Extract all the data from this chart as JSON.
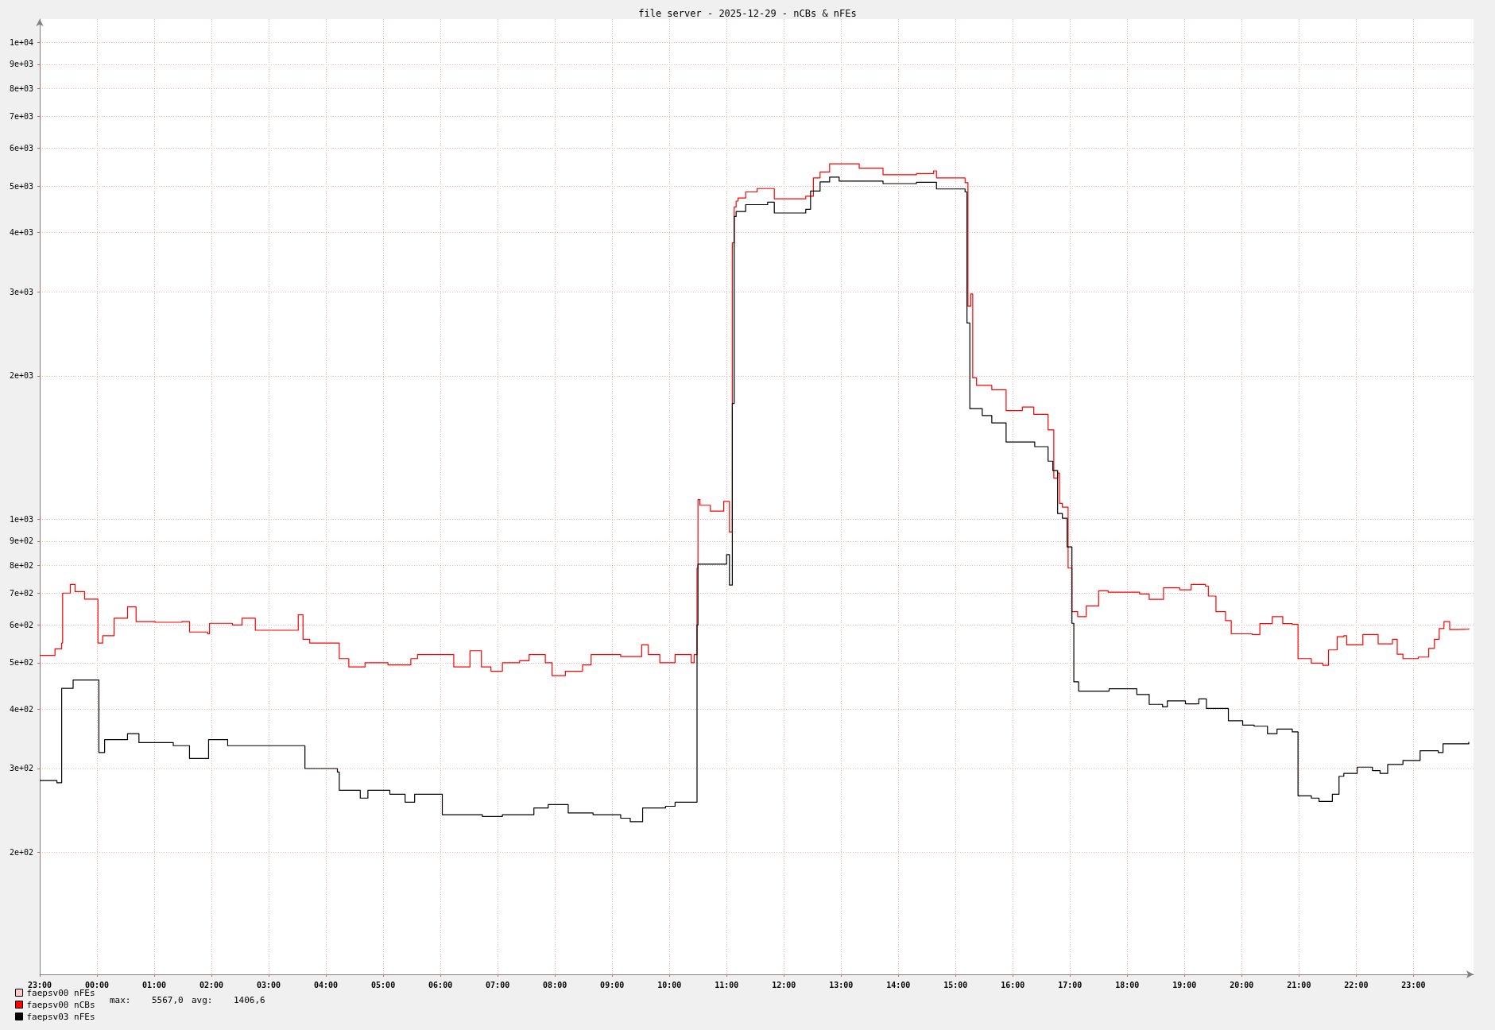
{
  "chart_data": {
    "type": "step",
    "title": "file server - 2025-12-29 - nCBs & nFEs",
    "xlim": [
      "2025-12-28T23:00",
      "2025-12-30T00:03"
    ],
    "xticks": [
      {
        "value": "2025-12-28T23:00",
        "label": "23:00"
      },
      {
        "value": "2025-12-29T00:00",
        "label": "00:00"
      },
      {
        "value": "2025-12-29T01:00",
        "label": "01:00"
      },
      {
        "value": "2025-12-29T02:00",
        "label": "02:00"
      },
      {
        "value": "2025-12-29T03:00",
        "label": "03:00"
      },
      {
        "value": "2025-12-29T04:00",
        "label": "04:00"
      },
      {
        "value": "2025-12-29T05:00",
        "label": "05:00"
      },
      {
        "value": "2025-12-29T06:00",
        "label": "06:00"
      },
      {
        "value": "2025-12-29T07:00",
        "label": "07:00"
      },
      {
        "value": "2025-12-29T08:00",
        "label": "08:00"
      },
      {
        "value": "2025-12-29T09:00",
        "label": "09:00"
      },
      {
        "value": "2025-12-29T10:00",
        "label": "10:00"
      },
      {
        "value": "2025-12-29T11:00",
        "label": "11:00"
      },
      {
        "value": "2025-12-29T12:00",
        "label": "12:00"
      },
      {
        "value": "2025-12-29T13:00",
        "label": "13:00"
      },
      {
        "value": "2025-12-29T14:00",
        "label": "14:00"
      },
      {
        "value": "2025-12-29T15:00",
        "label": "15:00"
      },
      {
        "value": "2025-12-29T16:00",
        "label": "16:00"
      },
      {
        "value": "2025-12-29T17:00",
        "label": "17:00"
      },
      {
        "value": "2025-12-29T18:00",
        "label": "18:00"
      },
      {
        "value": "2025-12-29T19:00",
        "label": "19:00"
      },
      {
        "value": "2025-12-29T20:00",
        "label": "20:00"
      },
      {
        "value": "2025-12-29T21:00",
        "label": "21:00"
      },
      {
        "value": "2025-12-29T22:00",
        "label": "22:00"
      },
      {
        "value": "2025-12-29T23:00",
        "label": "23:00"
      }
    ],
    "ylim": [
      111,
      11200
    ],
    "log": "y",
    "yticks": [
      {
        "value": 200,
        "label": "2e+02"
      },
      {
        "value": 300,
        "label": "3e+02"
      },
      {
        "value": 400,
        "label": "4e+02"
      },
      {
        "value": 500,
        "label": "5e+02"
      },
      {
        "value": 600,
        "label": "6e+02"
      },
      {
        "value": 700,
        "label": "7e+02"
      },
      {
        "value": 800,
        "label": "8e+02"
      },
      {
        "value": 900,
        "label": "9e+02"
      },
      {
        "value": 1000,
        "label": "1e+03"
      },
      {
        "value": 2000,
        "label": "2e+03"
      },
      {
        "value": 3000,
        "label": "3e+03"
      },
      {
        "value": 4000,
        "label": "4e+03"
      },
      {
        "value": 5000,
        "label": "5e+03"
      },
      {
        "value": 6000,
        "label": "6e+03"
      },
      {
        "value": 7000,
        "label": "7e+03"
      },
      {
        "value": 8000,
        "label": "8e+03"
      },
      {
        "value": 9000,
        "label": "9e+03"
      },
      {
        "value": 10000,
        "label": "1e+04"
      }
    ],
    "grid": true,
    "legend": "bottom left",
    "marker": "none",
    "line_style": "solid",
    "annotations": [
      "max:    5567,0",
      "avg:    1406,6"
    ],
    "series": [
      {
        "name": "faepsv00 nFEs",
        "color": "#ffcccc"
      },
      {
        "name": "faepsv00 nCBs",
        "color": "#ff0000",
        "x": [
          "2025-12-28T23:00",
          "2025-12-28T23:16",
          "2025-12-28T23:23",
          "2025-12-28T23:24",
          "2025-12-28T23:32",
          "2025-12-28T23:37",
          "2025-12-28T23:47",
          "2025-12-29T00:01",
          "2025-12-29T00:06",
          "2025-12-29T00:18",
          "2025-12-29T00:32",
          "2025-12-29T00:41",
          "2025-12-29T01:01",
          "2025-12-29T01:29",
          "2025-12-29T01:37",
          "2025-12-29T01:56",
          "2025-12-29T01:58",
          "2025-12-29T02:22",
          "2025-12-29T02:32",
          "2025-12-29T02:46",
          "2025-12-29T03:15",
          "2025-12-29T03:31",
          "2025-12-29T03:36",
          "2025-12-29T03:43",
          "2025-12-29T04:12",
          "2025-12-29T04:14",
          "2025-12-29T04:24",
          "2025-12-29T04:41",
          "2025-12-29T05:05",
          "2025-12-29T05:29",
          "2025-12-29T05:36",
          "2025-12-29T06:02",
          "2025-12-29T06:14",
          "2025-12-29T06:31",
          "2025-12-29T06:43",
          "2025-12-29T06:53",
          "2025-12-29T07:05",
          "2025-12-29T07:23",
          "2025-12-29T07:33",
          "2025-12-29T07:50",
          "2025-12-29T07:57",
          "2025-12-29T08:11",
          "2025-12-29T08:29",
          "2025-12-29T08:38",
          "2025-12-29T09:09",
          "2025-12-29T09:31",
          "2025-12-29T09:38",
          "2025-12-29T09:50",
          "2025-12-29T10:06",
          "2025-12-29T10:23",
          "2025-12-29T10:26",
          "2025-12-29T10:29",
          "2025-12-29T10:30",
          "2025-12-29T10:32",
          "2025-12-29T10:43",
          "2025-12-29T10:57",
          "2025-12-29T11:03",
          "2025-12-29T11:06",
          "2025-12-29T11:08",
          "2025-12-29T11:10",
          "2025-12-29T11:12",
          "2025-12-29T11:20",
          "2025-12-29T11:32",
          "2025-12-29T11:43",
          "2025-12-29T11:50",
          "2025-12-29T12:23",
          "2025-12-29T12:31",
          "2025-12-29T12:38",
          "2025-12-29T12:48",
          "2025-12-29T13:19",
          "2025-12-29T13:44",
          "2025-12-29T14:19",
          "2025-12-29T14:37",
          "2025-12-29T14:40",
          "2025-12-29T15:10",
          "2025-12-29T15:13",
          "2025-12-29T15:16",
          "2025-12-29T15:18",
          "2025-12-29T15:22",
          "2025-12-29T15:38",
          "2025-12-29T15:53",
          "2025-12-29T16:10",
          "2025-12-29T16:22",
          "2025-12-29T16:37",
          "2025-12-29T16:43",
          "2025-12-29T16:47",
          "2025-12-29T16:49",
          "2025-12-29T16:52",
          "2025-12-29T16:58",
          "2025-12-29T17:02",
          "2025-12-29T17:08",
          "2025-12-29T17:17",
          "2025-12-29T17:30",
          "2025-12-29T17:40",
          "2025-12-29T18:13",
          "2025-12-29T18:23",
          "2025-12-29T18:38",
          "2025-12-29T18:55",
          "2025-12-29T19:07",
          "2025-12-29T19:22",
          "2025-12-29T19:25",
          "2025-12-29T19:33",
          "2025-12-29T19:43",
          "2025-12-29T19:49",
          "2025-12-29T20:11",
          "2025-12-29T20:19",
          "2025-12-29T20:32",
          "2025-12-29T20:43",
          "2025-12-29T20:53",
          "2025-12-29T20:59",
          "2025-12-29T21:13",
          "2025-12-29T21:25",
          "2025-12-29T21:31",
          "2025-12-29T21:40",
          "2025-12-29T21:47",
          "2025-12-29T21:50",
          "2025-12-29T22:01",
          "2025-12-29T22:07",
          "2025-12-29T22:19",
          "2025-12-29T22:23",
          "2025-12-29T22:38",
          "2025-12-29T22:43",
          "2025-12-29T22:49",
          "2025-12-29T23:05",
          "2025-12-29T23:16",
          "2025-12-29T23:22",
          "2025-12-29T23:27",
          "2025-12-29T23:32",
          "2025-12-29T23:38",
          "2025-12-29T23:46",
          "2025-12-29T23:58"
        ],
        "values": [
          518,
          535,
          550,
          700,
          730,
          705,
          680,
          550,
          570,
          620,
          655,
          610,
          608,
          610,
          580,
          575,
          605,
          600,
          620,
          585,
          585,
          630,
          560,
          550,
          550,
          510,
          490,
          500,
          495,
          510,
          520,
          520,
          490,
          530,
          490,
          480,
          500,
          505,
          520,
          500,
          470,
          480,
          495,
          520,
          515,
          545,
          520,
          500,
          520,
          500,
          520,
          790,
          1100,
          1070,
          1040,
          1090,
          940,
          3800,
          4520,
          4650,
          4720,
          4860,
          4940,
          4940,
          4700,
          4760,
          5200,
          5350,
          5567,
          5450,
          5280,
          5310,
          5380,
          5200,
          5080,
          2800,
          2970,
          1980,
          1910,
          1870,
          1690,
          1720,
          1660,
          1540,
          1220,
          1250,
          1080,
          1060,
          790,
          640,
          625,
          658,
          708,
          703,
          697,
          679,
          718,
          711,
          730,
          724,
          690,
          640,
          613,
          575,
          573,
          604,
          625,
          604,
          602,
          510,
          499,
          494,
          532,
          567,
          570,
          545,
          545,
          573,
          573,
          548,
          560,
          521,
          510,
          514,
          536,
          560,
          590,
          610,
          587,
          588,
          590
        ]
      },
      {
        "name": "faepsv03 nFEs",
        "color": "#000000",
        "x": [
          "2025-12-28T23:00",
          "2025-12-28T23:18",
          "2025-12-28T23:23",
          "2025-12-28T23:35",
          "2025-12-29T00:02",
          "2025-12-29T00:08",
          "2025-12-29T00:32",
          "2025-12-29T00:44",
          "2025-12-29T01:20",
          "2025-12-29T01:37",
          "2025-12-29T01:57",
          "2025-12-29T02:17",
          "2025-12-29T03:31",
          "2025-12-29T03:38",
          "2025-12-29T04:12",
          "2025-12-29T04:14",
          "2025-12-29T04:36",
          "2025-12-29T04:44",
          "2025-12-29T05:07",
          "2025-12-29T05:23",
          "2025-12-29T05:33",
          "2025-12-29T06:02",
          "2025-12-29T06:44",
          "2025-12-29T07:05",
          "2025-12-29T07:38",
          "2025-12-29T07:53",
          "2025-12-29T08:14",
          "2025-12-29T08:40",
          "2025-12-29T09:09",
          "2025-12-29T09:19",
          "2025-12-29T09:32",
          "2025-12-29T09:56",
          "2025-12-29T10:06",
          "2025-12-29T10:26",
          "2025-12-29T10:29",
          "2025-12-29T10:30",
          "2025-12-29T11:00",
          "2025-12-29T11:03",
          "2025-12-29T11:06",
          "2025-12-29T11:08",
          "2025-12-29T11:10",
          "2025-12-29T11:20",
          "2025-12-29T11:43",
          "2025-12-29T11:50",
          "2025-12-29T12:23",
          "2025-12-29T12:28",
          "2025-12-29T12:38",
          "2025-12-29T12:48",
          "2025-12-29T12:58",
          "2025-12-29T13:44",
          "2025-12-29T14:19",
          "2025-12-29T14:40",
          "2025-12-29T15:10",
          "2025-12-29T15:12",
          "2025-12-29T15:15",
          "2025-12-29T15:28",
          "2025-12-29T15:38",
          "2025-12-29T15:53",
          "2025-12-29T16:23",
          "2025-12-29T16:37",
          "2025-12-29T16:42",
          "2025-12-29T16:47",
          "2025-12-29T16:52",
          "2025-12-29T16:57",
          "2025-12-29T17:02",
          "2025-12-29T17:04",
          "2025-12-29T17:09",
          "2025-12-29T17:41",
          "2025-12-29T18:10",
          "2025-12-29T18:23",
          "2025-12-29T18:37",
          "2025-12-29T18:42",
          "2025-12-29T19:01",
          "2025-12-29T19:15",
          "2025-12-29T19:23",
          "2025-12-29T19:46",
          "2025-12-29T20:01",
          "2025-12-29T20:13",
          "2025-12-29T20:27",
          "2025-12-29T20:37",
          "2025-12-29T20:53",
          "2025-12-29T20:59",
          "2025-12-29T21:13",
          "2025-12-29T21:21",
          "2025-12-29T21:32",
          "2025-12-29T21:35",
          "2025-12-29T21:42",
          "2025-12-29T21:47",
          "2025-12-29T22:01",
          "2025-12-29T22:17",
          "2025-12-29T22:25",
          "2025-12-29T22:33",
          "2025-12-29T22:43",
          "2025-12-29T22:49",
          "2025-12-29T23:07",
          "2025-12-29T23:26",
          "2025-12-29T23:31",
          "2025-12-29T23:58"
        ],
        "values": [
          283,
          280,
          442,
          460,
          324,
          345,
          355,
          340,
          335,
          315,
          345,
          335,
          335,
          300,
          295,
          270,
          260,
          270,
          265,
          255,
          265,
          240,
          238,
          240,
          248,
          252,
          242,
          240,
          236,
          232,
          248,
          250,
          255,
          255,
          600,
          805,
          843,
          728,
          1750,
          4315,
          4420,
          4570,
          4625,
          4390,
          4470,
          4880,
          5100,
          5220,
          5120,
          5060,
          5090,
          4930,
          4860,
          2580,
          1706,
          1650,
          1593,
          1452,
          1420,
          1324,
          1265,
          1028,
          1005,
          875,
          605,
          456,
          436,
          441,
          429,
          409,
          404,
          416,
          410,
          420,
          401,
          378,
          370,
          368,
          355,
          363,
          358,
          263,
          260,
          256,
          256,
          265,
          289,
          293,
          302,
          297,
          293,
          306,
          306,
          312,
          327,
          324,
          338,
          341
        ]
      }
    ]
  }
}
